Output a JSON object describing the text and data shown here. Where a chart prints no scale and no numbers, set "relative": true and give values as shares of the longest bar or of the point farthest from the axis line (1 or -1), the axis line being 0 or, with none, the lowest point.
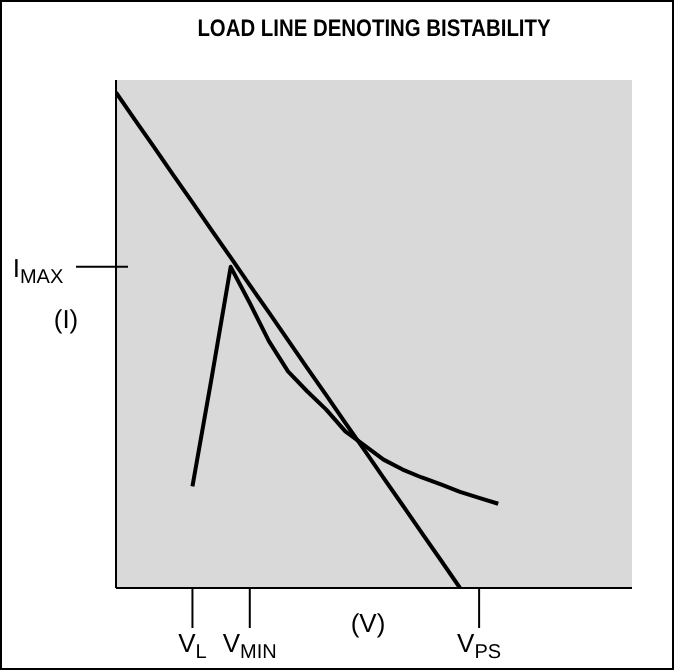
{
  "chart_data": {
    "type": "line",
    "title": "LOAD LINE DENOTING BISTABILITY",
    "xlabel": "(V)",
    "ylabel": "(I)",
    "relative": true,
    "annotations": [
      "I$_{MAX}$"
    ],
    "categories": [
      null,
      null,
      null,
      null,
      "V$_{L}$",
      null,
      null,
      "V$_{MIN}$",
      null,
      null,
      null,
      null,
      null,
      null,
      null,
      null,
      null,
      null,
      null,
      "V$_{PS}$",
      null,
      null,
      null,
      null,
      null,
      null,
      null,
      null
    ],
    "series": [
      {
        "color": "#000000",
        "values": [
          1,
          0.944,
          0.889,
          0.833,
          0.778,
          0.722,
          0.667,
          0.611,
          0.556,
          0.5,
          0.444,
          0.389,
          0.333,
          0.278,
          0.222,
          0.167,
          0.111,
          0.056,
          0,
          null,
          null,
          null,
          null,
          null,
          null,
          null,
          null,
          null
        ]
      },
      {
        "color": "#000000",
        "values": [
          null,
          null,
          null,
          null,
          0.205,
          0.423,
          0.648,
          0.575,
          0.498,
          0.437,
          0.397,
          0.36,
          0.316,
          0.288,
          0.259,
          0.239,
          0.223,
          0.209,
          0.194,
          0.182,
          0.17,
          null,
          null,
          null,
          null,
          null,
          null,
          null
        ]
      }
    ],
    "grid": false,
    "legend": false,
    "marker": "none",
    "line_style": "solid"
  }
}
